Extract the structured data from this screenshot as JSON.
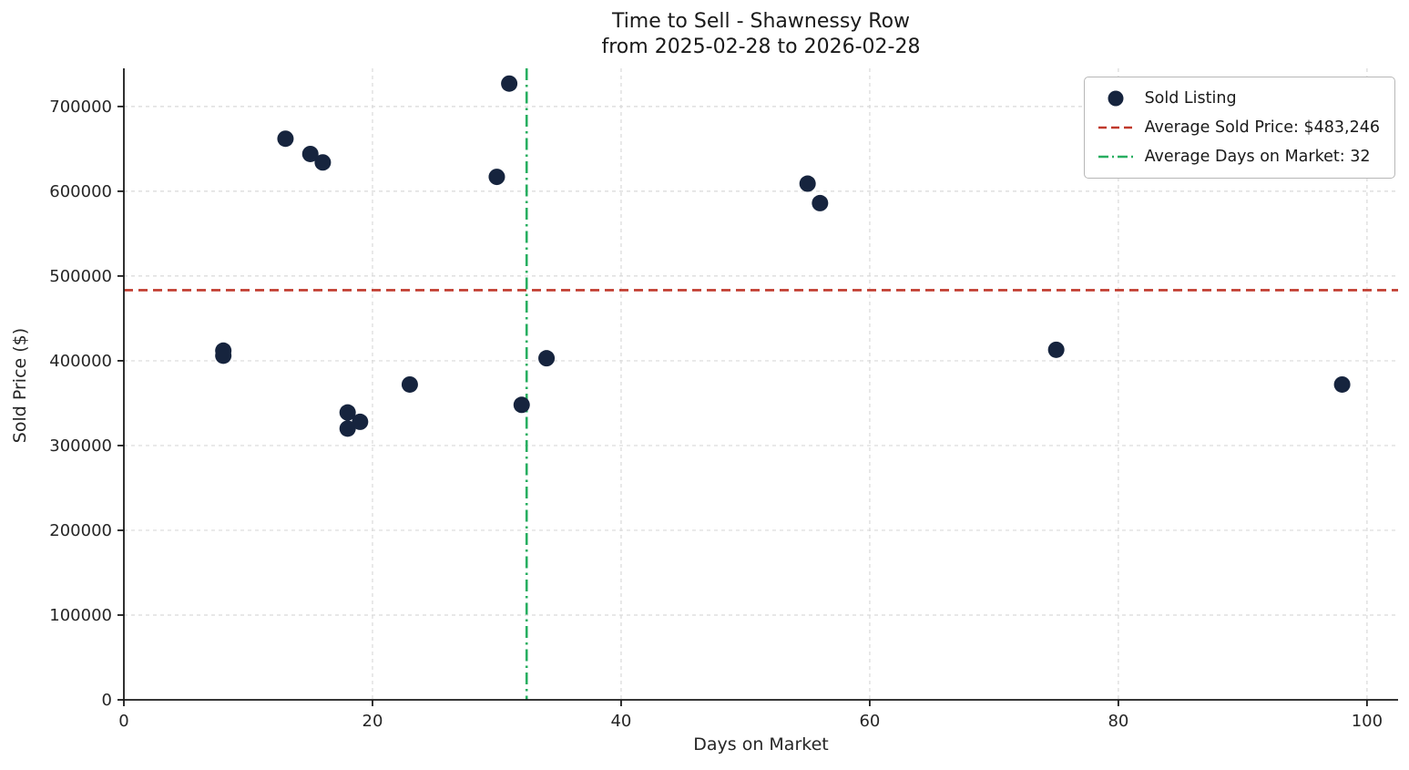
{
  "chart_data": {
    "type": "scatter",
    "title": "Time to Sell - Shawnessy Row",
    "subtitle": "from 2025-02-28 to 2026-02-28",
    "xlabel": "Days on Market",
    "ylabel": "Sold Price ($)",
    "xlim": [
      0,
      102.5
    ],
    "ylim": [
      0,
      745000
    ],
    "xticks": [
      0,
      20,
      40,
      60,
      80,
      100
    ],
    "yticks": [
      0,
      100000,
      200000,
      300000,
      400000,
      500000,
      600000,
      700000
    ],
    "grid": true,
    "points": [
      {
        "x": 8,
        "y": 412000
      },
      {
        "x": 8,
        "y": 406000
      },
      {
        "x": 13,
        "y": 662000
      },
      {
        "x": 15,
        "y": 644000
      },
      {
        "x": 16,
        "y": 634000
      },
      {
        "x": 18,
        "y": 339000
      },
      {
        "x": 18,
        "y": 320000
      },
      {
        "x": 19,
        "y": 328000
      },
      {
        "x": 23,
        "y": 372000
      },
      {
        "x": 30,
        "y": 617000
      },
      {
        "x": 31,
        "y": 727000
      },
      {
        "x": 32,
        "y": 348000
      },
      {
        "x": 34,
        "y": 403000
      },
      {
        "x": 55,
        "y": 609000
      },
      {
        "x": 56,
        "y": 586000
      },
      {
        "x": 75,
        "y": 413000
      },
      {
        "x": 98,
        "y": 372000
      }
    ],
    "avg_sold_price": 483246,
    "avg_days_on_market": 32,
    "avg_days_line_x": 32.4,
    "legend": [
      {
        "label": "Sold Listing",
        "marker": "dot"
      },
      {
        "label": "Average Sold Price: $483,246",
        "marker": "dashed-line"
      },
      {
        "label": "Average Days on Market: 32",
        "marker": "dashdot-line"
      }
    ],
    "colors": {
      "point": "#16243e",
      "avg_price_line": "#c0392b",
      "avg_days_line": "#27ae60",
      "grid": "#d9d9d9",
      "spine": "#1a1a1a",
      "text": "#262626"
    }
  }
}
